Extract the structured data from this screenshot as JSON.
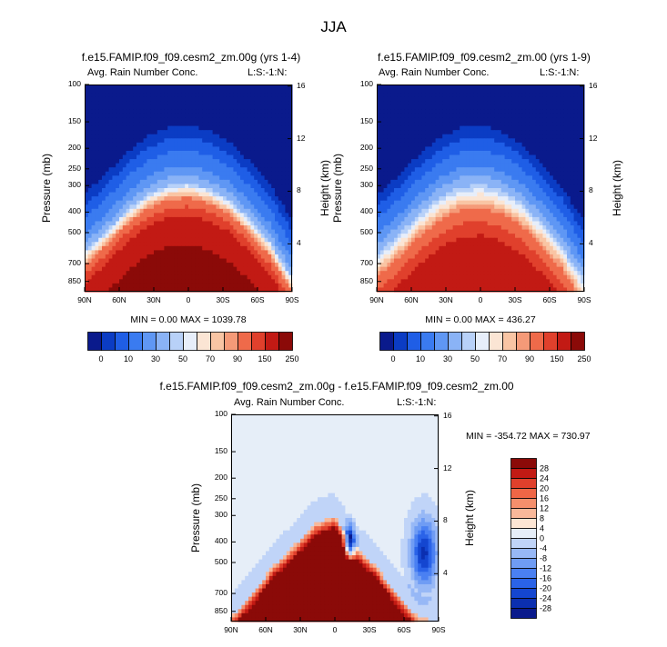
{
  "figure": {
    "title": "JJA"
  },
  "colors": {
    "abs_scale": [
      "#0a1a8c",
      "#0b3cc4",
      "#1f5ee6",
      "#3a7bf0",
      "#5f97f4",
      "#8ab3f6",
      "#b8d1f8",
      "#e7eefa",
      "#fbe5d4",
      "#f9c5a4",
      "#f59a78",
      "#ef6a4a",
      "#e0402c",
      "#c21a14",
      "#8b0a08"
    ],
    "diff_scale": [
      "#0a1a8c",
      "#0b2fb0",
      "#1446d0",
      "#2a63e8",
      "#4a80f2",
      "#6f9cf4",
      "#97b8f6",
      "#c0d4f8",
      "#e6eef8",
      "#fde6d4",
      "#f8b89a",
      "#f48f6c",
      "#ef6646",
      "#e0402c",
      "#c21a14",
      "#8b0a08"
    ]
  },
  "chart_data": [
    {
      "type": "heatmap",
      "title": "f.e15.FAMIP.f09_f09.cesm2_zm.00g (yrs 1-4)",
      "left_label": "Avg. Rain Number Conc.",
      "right_label": "L:S:-1:N:",
      "xlabel": "",
      "ylabel": "Pressure (mb)",
      "ylabel_right": "Height (km)",
      "x_ticks": [
        "90N",
        "60N",
        "30N",
        "0",
        "30S",
        "60S",
        "90S"
      ],
      "y_ticks": [
        "100",
        "150",
        "200",
        "250",
        "300",
        "400",
        "500",
        "700",
        "850"
      ],
      "y_ticks_right": [
        "16",
        "12",
        "8",
        "4"
      ],
      "stats": "MIN =  0.00  MAX = 1039.78",
      "colorbar_labels": [
        "0",
        "10",
        "30",
        "50",
        "70",
        "90",
        "150",
        "250"
      ],
      "model": {
        "top_pressure": [
          590,
          480,
          380,
          320,
          290,
          282,
          300,
          340,
          420,
          540,
          780
        ],
        "bottom_value": 250,
        "scale_max": 250
      }
    },
    {
      "type": "heatmap",
      "title": "f.e15.FAMIP.f09_f09.cesm2_zm.00 (yrs 1-9)",
      "left_label": "Avg. Rain Number Conc.",
      "right_label": "L:S:-1:N:",
      "xlabel": "",
      "ylabel": "Pressure (mb)",
      "ylabel_right": "Height (km)",
      "x_ticks": [
        "90N",
        "60N",
        "30N",
        "0",
        "30S",
        "60S",
        "90S"
      ],
      "y_ticks": [
        "100",
        "150",
        "200",
        "250",
        "300",
        "400",
        "500",
        "700",
        "850"
      ],
      "y_ticks_right": [
        "16",
        "12",
        "8",
        "4"
      ],
      "stats": "MIN =  0.00  MAX = 436.27",
      "colorbar_labels": [
        "0",
        "10",
        "30",
        "50",
        "70",
        "90",
        "150",
        "250"
      ],
      "model": {
        "top_pressure": [
          600,
          490,
          390,
          325,
          290,
          282,
          300,
          345,
          430,
          560,
          790
        ],
        "bottom_value": 170,
        "scale_max": 250
      }
    },
    {
      "type": "heatmap",
      "title": "f.e15.FAMIP.f09_f09.cesm2_zm.00g - f.e15.FAMIP.f09_f09.cesm2_zm.00",
      "left_label": "Avg. Rain Number Conc.",
      "right_label": "L:S:-1:N:",
      "xlabel": "",
      "ylabel": "Pressure (mb)",
      "ylabel_right": "Height (km)",
      "x_ticks": [
        "90N",
        "60N",
        "30N",
        "0",
        "30S",
        "60S",
        "90S"
      ],
      "y_ticks": [
        "100",
        "150",
        "200",
        "250",
        "300",
        "400",
        "500",
        "700",
        "850"
      ],
      "y_ticks_right": [
        "16",
        "12",
        "8",
        "4"
      ],
      "stats": "MIN = -354.72  MAX = 730.97",
      "colorbar_labels": [
        "28",
        "24",
        "20",
        "16",
        "12",
        "8",
        "4",
        "0",
        "-4",
        "-8",
        "-12",
        "-16",
        "-20",
        "-24",
        "-28"
      ],
      "model": {
        "positive_top_pressure": [
          900,
          700,
          520,
          420,
          330,
          300,
          420,
          520,
          700,
          900,
          950
        ],
        "scale_max": 28
      }
    }
  ]
}
